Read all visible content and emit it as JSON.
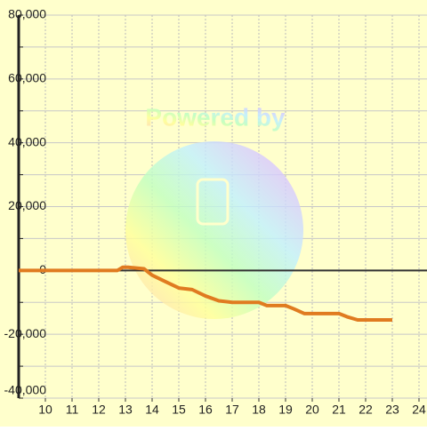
{
  "chart_data": {
    "type": "line",
    "watermark": "Powered by",
    "background": "#ffffcc",
    "x": [
      9,
      12.7,
      12.9,
      13.1,
      13.7,
      14,
      14.5,
      15,
      15.5,
      16,
      16.5,
      17,
      18,
      18.3,
      19,
      19.3,
      19.7,
      20,
      21,
      21.3,
      21.7,
      23
    ],
    "series": [
      {
        "color": "#e07b20",
        "values": [
          0,
          0,
          1000,
          1000,
          500,
          -1500,
          -3500,
          -5500,
          -6000,
          -8000,
          -9500,
          -10000,
          -10000,
          -11000,
          -11000,
          -12000,
          -13500,
          -13500,
          -13500,
          -14500,
          -15500,
          -15500
        ]
      }
    ],
    "xlim": [
      9,
      24.3
    ],
    "xticks": [
      10,
      11,
      12,
      13,
      14,
      15,
      16,
      17,
      18,
      19,
      20,
      21,
      22,
      23,
      24
    ],
    "ylim": [
      -40000,
      80000
    ],
    "yticks": [
      {
        "value": -40000,
        "label": "-40,000"
      },
      {
        "value": -20000,
        "label": "-20,000"
      },
      0,
      {
        "value": 20000,
        "label": "20,000"
      },
      {
        "value": 40000,
        "label": "40,000"
      },
      {
        "value": 60000,
        "label": "60,000"
      },
      {
        "value": 80000,
        "label": "80,000"
      }
    ],
    "grid": true
  }
}
